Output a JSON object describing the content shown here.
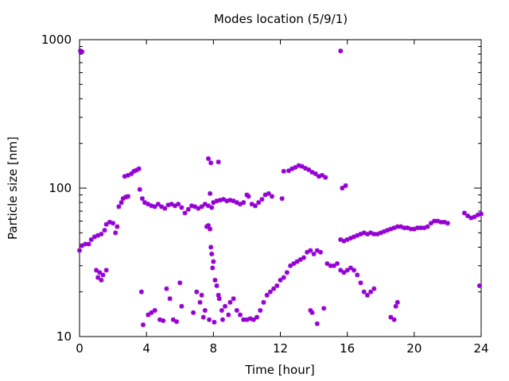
{
  "chart_data": {
    "type": "scatter",
    "title": "Modes location (5/9/1)",
    "xlabel": "Time [hour]",
    "ylabel": "Particle size [nm]",
    "xlim": [
      0,
      24
    ],
    "ylim": [
      10,
      1000
    ],
    "yscale": "log",
    "grid": false,
    "legend": "none",
    "marker_color": "#9400d3",
    "marker": "asterisk",
    "x_ticks": [
      0,
      4,
      8,
      12,
      16,
      20,
      24
    ],
    "x_tick_labels": [
      "0",
      "4",
      "8",
      "12",
      "16",
      "20",
      "24"
    ],
    "y_ticks": [
      10,
      100,
      1000
    ],
    "y_tick_labels": [
      "10",
      "100",
      "1000"
    ],
    "points": [
      [
        0.05,
        840
      ],
      [
        0.15,
        830
      ],
      [
        15.6,
        840
      ],
      [
        0.0,
        38
      ],
      [
        0.15,
        41
      ],
      [
        0.35,
        42
      ],
      [
        0.55,
        42
      ],
      [
        0.7,
        45
      ],
      [
        0.9,
        47
      ],
      [
        1.1,
        48
      ],
      [
        1.3,
        49
      ],
      [
        1.5,
        52
      ],
      [
        1.6,
        57
      ],
      [
        1.8,
        59
      ],
      [
        2.0,
        58
      ],
      [
        2.15,
        50
      ],
      [
        2.25,
        55
      ],
      [
        2.35,
        75
      ],
      [
        2.5,
        80
      ],
      [
        2.6,
        85
      ],
      [
        2.75,
        87
      ],
      [
        2.9,
        88
      ],
      [
        2.7,
        120
      ],
      [
        2.9,
        122
      ],
      [
        3.1,
        125
      ],
      [
        3.25,
        130
      ],
      [
        3.4,
        132
      ],
      [
        3.55,
        135
      ],
      [
        3.6,
        98
      ],
      [
        3.75,
        85
      ],
      [
        3.9,
        80
      ],
      [
        4.1,
        78
      ],
      [
        4.3,
        76
      ],
      [
        4.5,
        75
      ],
      [
        4.7,
        78
      ],
      [
        4.9,
        75
      ],
      [
        5.1,
        73
      ],
      [
        5.3,
        77
      ],
      [
        5.5,
        78
      ],
      [
        5.7,
        76
      ],
      [
        5.9,
        78
      ],
      [
        6.1,
        74
      ],
      [
        6.3,
        68
      ],
      [
        6.5,
        72
      ],
      [
        6.7,
        76
      ],
      [
        6.9,
        75
      ],
      [
        7.1,
        73
      ],
      [
        7.3,
        75
      ],
      [
        7.5,
        78
      ],
      [
        7.7,
        76
      ],
      [
        7.9,
        74
      ],
      [
        8.0,
        80
      ],
      [
        8.2,
        82
      ],
      [
        8.4,
        83
      ],
      [
        8.6,
        84
      ],
      [
        8.8,
        82
      ],
      [
        9.0,
        83
      ],
      [
        9.2,
        82
      ],
      [
        9.4,
        80
      ],
      [
        9.6,
        78
      ],
      [
        9.8,
        80
      ],
      [
        10.0,
        90
      ],
      [
        10.1,
        88
      ],
      [
        10.3,
        78
      ],
      [
        10.5,
        76
      ],
      [
        10.7,
        80
      ],
      [
        10.9,
        84
      ],
      [
        11.1,
        90
      ],
      [
        11.3,
        92
      ],
      [
        11.5,
        88
      ],
      [
        12.1,
        85
      ],
      [
        7.7,
        158
      ],
      [
        7.85,
        148
      ],
      [
        8.3,
        150
      ],
      [
        7.8,
        92
      ],
      [
        12.2,
        130
      ],
      [
        12.5,
        131
      ],
      [
        12.7,
        135
      ],
      [
        12.9,
        138
      ],
      [
        13.1,
        142
      ],
      [
        13.3,
        140
      ],
      [
        13.5,
        136
      ],
      [
        13.7,
        133
      ],
      [
        13.9,
        128
      ],
      [
        14.1,
        125
      ],
      [
        14.3,
        120
      ],
      [
        14.5,
        122
      ],
      [
        14.7,
        118
      ],
      [
        15.7,
        100
      ],
      [
        15.9,
        104
      ],
      [
        1.0,
        28
      ],
      [
        1.2,
        27
      ],
      [
        1.4,
        26
      ],
      [
        1.6,
        28
      ],
      [
        1.1,
        25
      ],
      [
        1.3,
        24
      ],
      [
        3.7,
        20
      ],
      [
        3.8,
        12
      ],
      [
        4.1,
        14
      ],
      [
        4.3,
        14.5
      ],
      [
        4.5,
        15
      ],
      [
        4.8,
        13
      ],
      [
        5.0,
        12.8
      ],
      [
        5.2,
        21
      ],
      [
        5.4,
        18
      ],
      [
        5.6,
        13
      ],
      [
        5.8,
        12.6
      ],
      [
        6.0,
        23
      ],
      [
        6.1,
        16
      ],
      [
        6.8,
        14.5
      ],
      [
        7.0,
        20
      ],
      [
        7.2,
        17
      ],
      [
        7.4,
        13.5
      ],
      [
        7.5,
        15
      ],
      [
        7.6,
        55
      ],
      [
        7.7,
        56
      ],
      [
        7.8,
        53
      ],
      [
        7.85,
        40
      ],
      [
        7.9,
        36
      ],
      [
        8.0,
        32
      ],
      [
        8.1,
        24
      ],
      [
        8.2,
        22
      ],
      [
        7.95,
        29
      ],
      [
        8.3,
        19
      ],
      [
        8.35,
        18
      ],
      [
        8.5,
        15
      ],
      [
        8.55,
        13
      ],
      [
        8.7,
        16
      ],
      [
        8.9,
        14
      ],
      [
        9.0,
        17
      ],
      [
        9.2,
        18
      ],
      [
        9.4,
        15
      ],
      [
        9.6,
        14
      ],
      [
        9.8,
        13
      ],
      [
        7.3,
        19
      ],
      [
        7.75,
        13
      ],
      [
        8.05,
        12.5
      ],
      [
        10.0,
        13
      ],
      [
        10.2,
        13.2
      ],
      [
        10.4,
        13
      ],
      [
        10.6,
        13.5
      ],
      [
        10.8,
        15
      ],
      [
        11.0,
        17
      ],
      [
        11.2,
        19
      ],
      [
        11.4,
        20
      ],
      [
        11.6,
        21
      ],
      [
        11.8,
        22
      ],
      [
        12.0,
        24
      ],
      [
        12.2,
        25
      ],
      [
        12.4,
        27
      ],
      [
        12.6,
        30
      ],
      [
        12.8,
        31
      ],
      [
        13.0,
        32
      ],
      [
        13.2,
        33
      ],
      [
        13.4,
        34
      ],
      [
        13.6,
        37
      ],
      [
        13.8,
        38
      ],
      [
        14.0,
        36
      ],
      [
        14.2,
        38
      ],
      [
        14.4,
        37
      ],
      [
        13.8,
        15
      ],
      [
        13.9,
        14.5
      ],
      [
        14.2,
        12.2
      ],
      [
        14.6,
        15.5
      ],
      [
        14.8,
        31
      ],
      [
        15.0,
        30
      ],
      [
        15.2,
        30
      ],
      [
        15.4,
        31
      ],
      [
        15.6,
        28
      ],
      [
        15.8,
        27
      ],
      [
        16.0,
        28
      ],
      [
        16.2,
        29
      ],
      [
        16.4,
        28
      ],
      [
        16.6,
        26
      ],
      [
        16.8,
        23
      ],
      [
        17.0,
        20
      ],
      [
        17.2,
        19
      ],
      [
        17.4,
        20
      ],
      [
        17.6,
        21
      ],
      [
        18.6,
        13.5
      ],
      [
        18.8,
        13
      ],
      [
        18.9,
        16
      ],
      [
        19.0,
        17
      ],
      [
        15.6,
        45
      ],
      [
        15.8,
        44
      ],
      [
        16.0,
        45
      ],
      [
        16.2,
        46
      ],
      [
        16.4,
        47
      ],
      [
        16.6,
        48
      ],
      [
        16.8,
        49
      ],
      [
        17.0,
        50
      ],
      [
        17.2,
        49
      ],
      [
        17.4,
        50
      ],
      [
        17.6,
        49
      ],
      [
        17.8,
        49
      ],
      [
        18.0,
        50
      ],
      [
        18.2,
        51
      ],
      [
        18.4,
        52
      ],
      [
        18.6,
        53
      ],
      [
        18.8,
        54
      ],
      [
        19.0,
        55
      ],
      [
        19.2,
        55
      ],
      [
        19.4,
        54
      ],
      [
        19.6,
        54
      ],
      [
        19.8,
        53
      ],
      [
        20.0,
        53
      ],
      [
        20.2,
        54
      ],
      [
        20.4,
        54
      ],
      [
        20.6,
        54
      ],
      [
        20.8,
        55
      ],
      [
        21.0,
        58
      ],
      [
        21.2,
        60
      ],
      [
        21.4,
        60
      ],
      [
        21.6,
        59
      ],
      [
        21.8,
        59
      ],
      [
        22.0,
        58
      ],
      [
        23.0,
        68
      ],
      [
        23.2,
        65
      ],
      [
        23.4,
        63
      ],
      [
        23.6,
        64
      ],
      [
        23.8,
        66
      ],
      [
        24.0,
        67
      ],
      [
        23.9,
        22
      ]
    ]
  }
}
